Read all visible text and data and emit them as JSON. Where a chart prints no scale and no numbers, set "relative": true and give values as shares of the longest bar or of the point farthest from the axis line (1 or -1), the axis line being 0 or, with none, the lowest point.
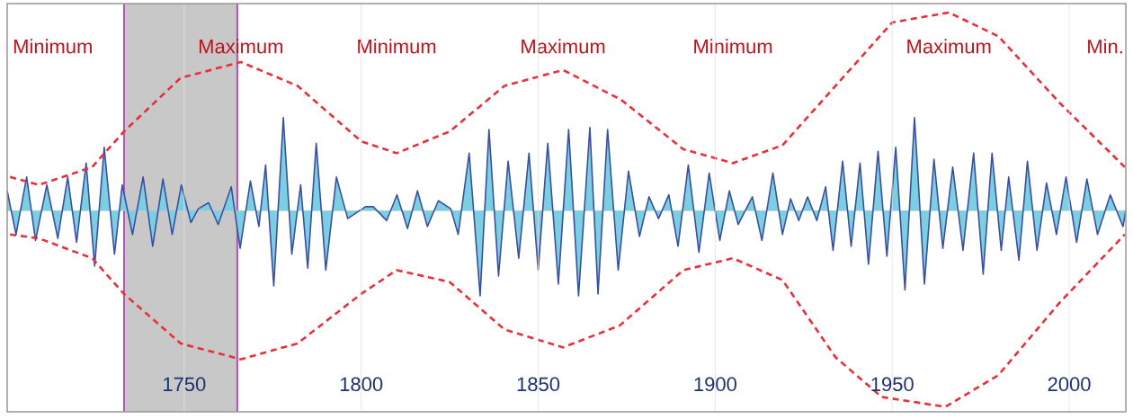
{
  "chart_data": {
    "type": "area",
    "relative": true,
    "xlim": [
      1700,
      2016
    ],
    "xticks": [
      1750,
      1800,
      1850,
      1900,
      1950,
      2000
    ],
    "grid": "x",
    "bands": [
      {
        "axis": "x",
        "from": 1733,
        "to": 1765,
        "color": "#c8c8c8"
      }
    ],
    "ref_lines": [
      {
        "axis": "x",
        "value": 1733,
        "color": "#b450b4"
      },
      {
        "axis": "x",
        "value": 1765,
        "color": "#b450b4"
      }
    ],
    "annotations": [
      "Minimum",
      "Maximum",
      "Minimum",
      "Maximum",
      "Minimum",
      "Maximum",
      "Min."
    ],
    "series": [
      {
        "color": "#7ccfe0",
        "line_style": "solid",
        "x": [
          1700,
          1702.5,
          1705.5,
          1708,
          1711.2,
          1714.3,
          1717.1,
          1719.6,
          1722.3,
          1724.7,
          1727.4,
          1730.3,
          1732.5,
          1735.4,
          1738.4,
          1741.1,
          1744,
          1746.6,
          1749.2,
          1751.9,
          1754,
          1756.9,
          1759.6,
          1763.3,
          1765.8,
          1768.7,
          1771.1,
          1773,
          1775.3,
          1778,
          1780.4,
          1782.9,
          1784.9,
          1787.3,
          1790,
          1793,
          1796.2,
          1801.2,
          1803.4,
          1807.2,
          1810.1,
          1813.1,
          1815.9,
          1818.7,
          1821.8,
          1825.3,
          1827.4,
          1830.5,
          1833.6,
          1836.1,
          1838.8,
          1841.5,
          1844.5,
          1847.4,
          1850,
          1852.7,
          1855.7,
          1858.6,
          1861.4,
          1864.6,
          1866.9,
          1869.6,
          1872.6,
          1875.5,
          1878.6,
          1881.3,
          1884,
          1886.9,
          1889.5,
          1892.4,
          1895.4,
          1898.3,
          1901.3,
          1904,
          1906.5,
          1910.5,
          1913.2,
          1916.3,
          1919,
          1921.3,
          1923.6,
          1926.1,
          1928.7,
          1931.2,
          1933.3,
          1936,
          1938.4,
          1940.9,
          1943.3,
          1946,
          1948.5,
          1951,
          1953.6,
          1956.3,
          1959.1,
          1961.8,
          1964.3,
          1967.1,
          1970,
          1973,
          1975.7,
          1978.2,
          1980.8,
          1982.9,
          1985.8,
          1988.2,
          1990.9,
          1993.6,
          1996.4,
          1999.1,
          2002.1,
          2005,
          2008,
          2011.6,
          2015.2,
          2016
        ],
        "values": [
          0.1,
          -0.12,
          0.17,
          -0.15,
          0.13,
          -0.14,
          0.17,
          -0.16,
          0.24,
          -0.28,
          0.32,
          -0.22,
          0.13,
          -0.12,
          0.17,
          -0.18,
          0.16,
          -0.12,
          0.13,
          -0.06,
          0.01,
          0.04,
          -0.07,
          0.12,
          -0.19,
          0.15,
          -0.08,
          0.23,
          -0.38,
          0.47,
          -0.22,
          0.13,
          -0.29,
          0.34,
          -0.3,
          0.17,
          -0.04,
          0.02,
          0.02,
          -0.05,
          0.08,
          -0.09,
          0.1,
          -0.08,
          0.05,
          0.01,
          -0.12,
          0.29,
          -0.43,
          0.41,
          -0.33,
          0.25,
          -0.24,
          0.29,
          -0.3,
          0.34,
          -0.37,
          0.41,
          -0.43,
          0.42,
          -0.42,
          0.41,
          -0.3,
          0.2,
          -0.13,
          0.07,
          -0.04,
          0.08,
          -0.18,
          0.23,
          -0.21,
          0.19,
          -0.15,
          0.1,
          -0.07,
          0.07,
          -0.15,
          0.19,
          -0.12,
          0.06,
          -0.05,
          0.07,
          -0.05,
          0.12,
          -0.2,
          0.25,
          -0.18,
          0.24,
          -0.27,
          0.3,
          -0.23,
          0.32,
          -0.4,
          0.47,
          -0.37,
          0.26,
          -0.19,
          0.22,
          -0.2,
          0.29,
          -0.32,
          0.29,
          -0.2,
          0.17,
          -0.25,
          0.25,
          -0.2,
          0.14,
          -0.12,
          0.17,
          -0.16,
          0.16,
          -0.12,
          0.08,
          -0.08,
          0.0
        ]
      },
      {
        "type": "line",
        "color": "#e8303a",
        "line_style": "dashed",
        "x": [
          1700.8,
          1709,
          1724,
          1733,
          1749,
          1766,
          1782,
          1800,
          1810,
          1825,
          1840.5,
          1857,
          1873.4,
          1891,
          1905,
          1919,
          1935,
          1950,
          1966,
          1980,
          1997.5,
          2015.7
        ],
        "values": [
          0.17,
          0.13,
          0.22,
          0.4,
          0.67,
          0.75,
          0.63,
          0.35,
          0.29,
          0.4,
          0.63,
          0.71,
          0.56,
          0.31,
          0.24,
          0.33,
          0.65,
          0.95,
          1.0,
          0.88,
          0.54,
          0.22
        ]
      },
      {
        "type": "line",
        "color": "#e8303a",
        "line_style": "dashed",
        "x": [
          1700.8,
          1709,
          1724,
          1733,
          1749,
          1766,
          1782,
          1800,
          1810,
          1825,
          1840.5,
          1857,
          1873,
          1891,
          1905,
          1919,
          1934,
          1947,
          1965,
          1980,
          1997.5,
          2015.7
        ],
        "values": [
          -0.12,
          -0.14,
          -0.24,
          -0.42,
          -0.67,
          -0.75,
          -0.67,
          -0.42,
          -0.3,
          -0.36,
          -0.6,
          -0.69,
          -0.58,
          -0.3,
          -0.24,
          -0.35,
          -0.74,
          -0.94,
          -0.99,
          -0.83,
          -0.46,
          -0.12
        ]
      }
    ]
  }
}
